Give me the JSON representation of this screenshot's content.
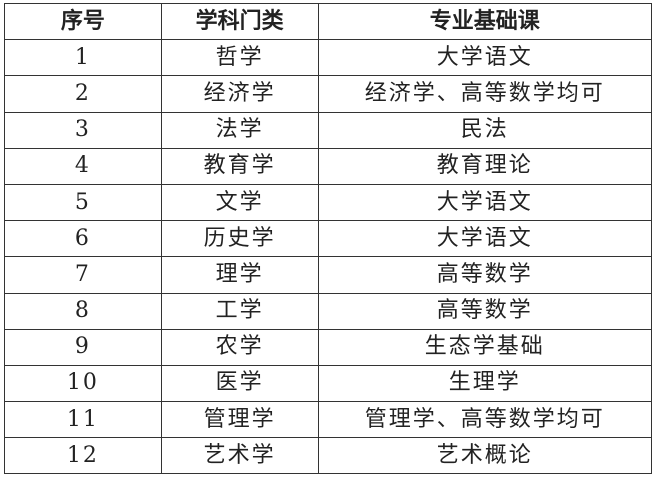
{
  "table": {
    "headers": [
      "序号",
      "学科门类",
      "专业基础课"
    ],
    "rows": [
      [
        "1",
        "哲学",
        "大学语文"
      ],
      [
        "2",
        "经济学",
        "经济学、高等数学均可"
      ],
      [
        "3",
        "法学",
        "民法"
      ],
      [
        "4",
        "教育学",
        "教育理论"
      ],
      [
        "5",
        "文学",
        "大学语文"
      ],
      [
        "6",
        "历史学",
        "大学语文"
      ],
      [
        "7",
        "理学",
        "高等数学"
      ],
      [
        "8",
        "工学",
        "高等数学"
      ],
      [
        "9",
        "农学",
        "生态学基础"
      ],
      [
        "10",
        "医学",
        "生理学"
      ],
      [
        "11",
        "管理学",
        "管理学、高等数学均可"
      ],
      [
        "12",
        "艺术学",
        "艺术概论"
      ]
    ]
  }
}
